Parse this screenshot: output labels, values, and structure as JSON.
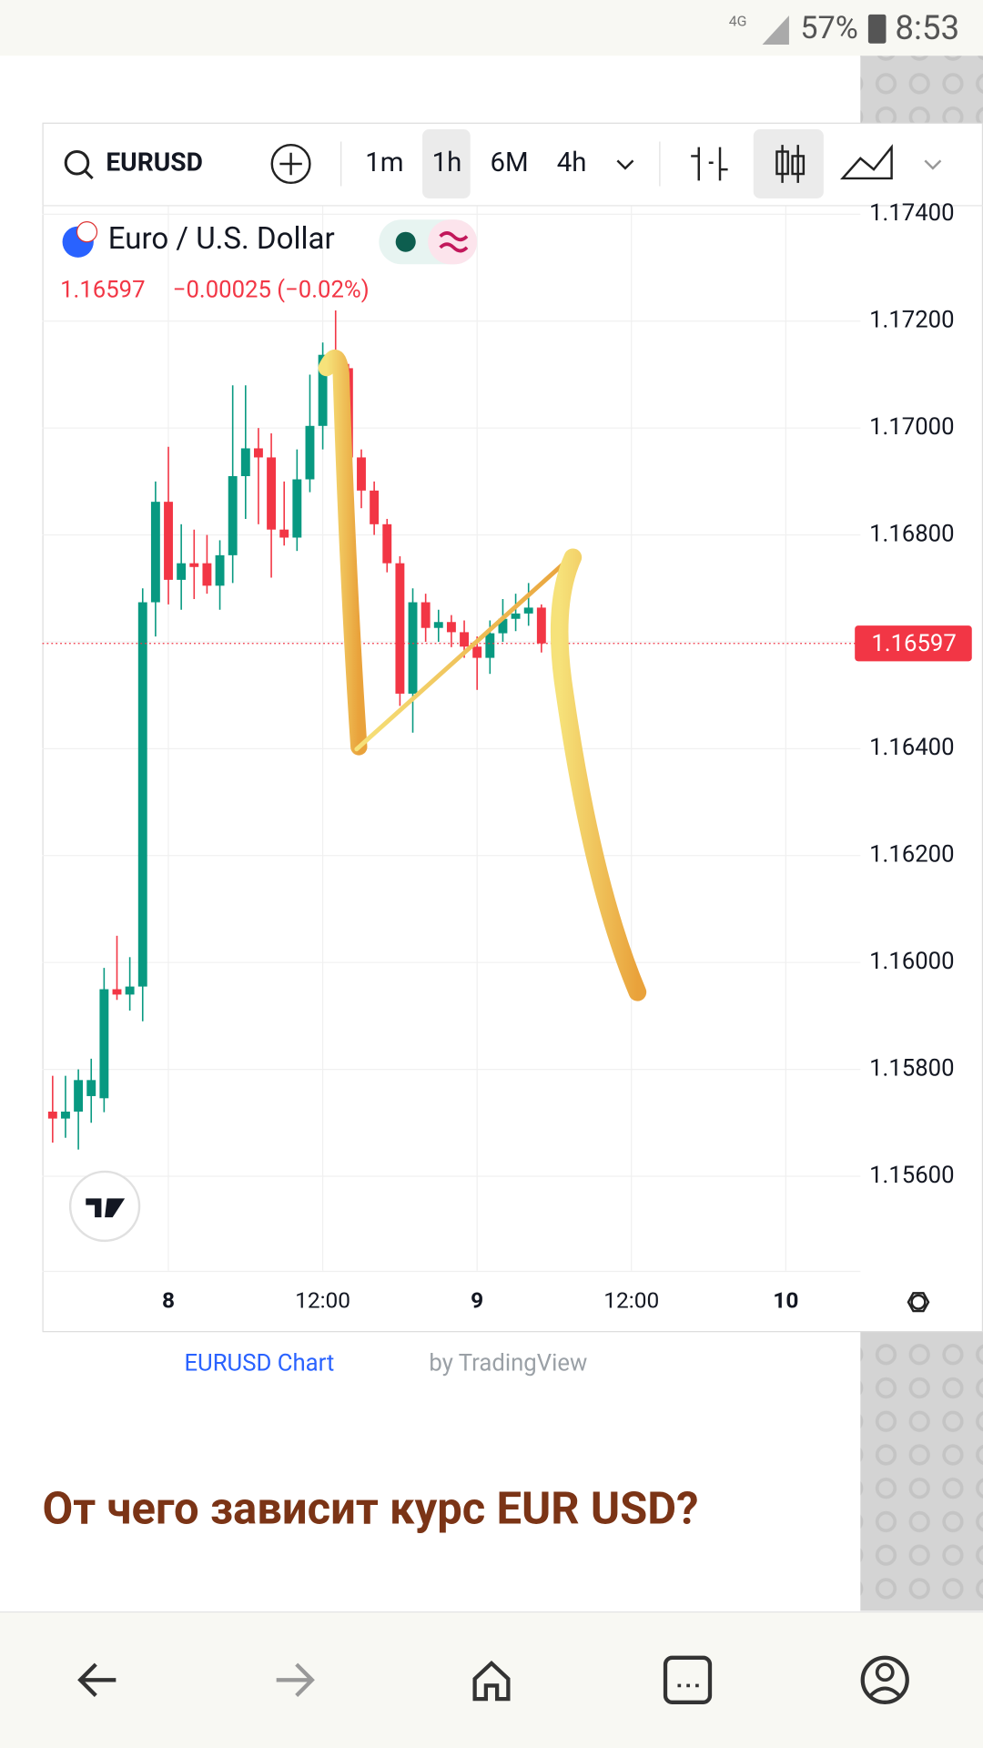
{
  "status_bar": {
    "network": "4G",
    "battery": "57%",
    "time": "8:53"
  },
  "toolbar": {
    "symbol": "EURUSD",
    "intervals": [
      "1m",
      "1h",
      "6M",
      "4h"
    ]
  },
  "chart_data": {
    "type": "candlestick",
    "title": "Euro / U.S. Dollar",
    "last_price": 1.16597,
    "change": "−0.00025 (−0.02%)",
    "x": [
      -9,
      -8,
      -7,
      -6,
      -5,
      -4,
      -3,
      -2,
      -1,
      0,
      1,
      2,
      3,
      4,
      5,
      6,
      7,
      8,
      9,
      10,
      11,
      12,
      13,
      14,
      15,
      16,
      17,
      18,
      19,
      20,
      21,
      22,
      23,
      24,
      25,
      26,
      27,
      28,
      29
    ],
    "open": [
      1.15721,
      1.15708,
      1.15721,
      1.1575,
      1.15746,
      1.1595,
      1.1594,
      1.15955,
      1.16674,
      1.16862,
      1.16716,
      1.16747,
      1.16747,
      1.16705,
      1.16762,
      1.1691,
      1.16962,
      1.16945,
      1.1681,
      1.16795,
      1.16904,
      1.17004,
      1.17137,
      1.17112,
      1.16945,
      1.16883,
      1.1682,
      1.16747,
      1.16503,
      1.16674,
      1.16626,
      1.16637,
      1.16618,
      1.16591,
      1.1657,
      1.16616,
      1.16643,
      1.16653,
      1.16664
    ],
    "high": [
      1.15788,
      1.15788,
      1.158,
      1.1582,
      1.1599,
      1.1605,
      1.1601,
      1.167,
      1.169,
      1.16965,
      1.1682,
      1.1681,
      1.168,
      1.1679,
      1.1708,
      1.1708,
      1.17,
      1.1699,
      1.169,
      1.1696,
      1.171,
      1.1716,
      1.1722,
      1.1712,
      1.1696,
      1.169,
      1.1683,
      1.1676,
      1.167,
      1.1669,
      1.1666,
      1.1665,
      1.1664,
      1.1661,
      1.1664,
      1.1668,
      1.1669,
      1.1671,
      1.1667
    ],
    "low": [
      1.15663,
      1.15672,
      1.1565,
      1.157,
      1.1572,
      1.1593,
      1.1591,
      1.1589,
      1.1661,
      1.1667,
      1.1666,
      1.1668,
      1.1669,
      1.1666,
      1.1671,
      1.1683,
      1.1682,
      1.1672,
      1.1678,
      1.1677,
      1.1688,
      1.1696,
      1.1705,
      1.1694,
      1.1685,
      1.168,
      1.1673,
      1.1648,
      1.1643,
      1.166,
      1.166,
      1.1659,
      1.1657,
      1.1651,
      1.1654,
      1.166,
      1.1662,
      1.1663,
      1.1658
    ],
    "close": [
      1.15708,
      1.15721,
      1.1578,
      1.1578,
      1.1595,
      1.1594,
      1.15955,
      1.16674,
      1.16862,
      1.16716,
      1.16747,
      1.1674,
      1.16705,
      1.16762,
      1.1691,
      1.16962,
      1.16945,
      1.1681,
      1.16795,
      1.16904,
      1.17004,
      1.17137,
      1.17112,
      1.16945,
      1.16883,
      1.1682,
      1.16747,
      1.16503,
      1.16674,
      1.16626,
      1.16637,
      1.16618,
      1.16591,
      1.1657,
      1.16616,
      1.16643,
      1.16653,
      1.16664,
      1.16597
    ],
    "up_color": "#089981",
    "down_color": "#f23645",
    "xlim": [
      -9.8,
      53.8
    ],
    "xticks": [
      {
        "value": 0,
        "label": "8"
      },
      {
        "value": 12,
        "label": "12:00"
      },
      {
        "value": 24,
        "label": "9"
      },
      {
        "value": 36,
        "label": "12:00"
      },
      {
        "value": 48,
        "label": "10"
      }
    ],
    "ylim": [
      1.15423,
      1.17415
    ],
    "yticks": [
      {
        "value": 1.156,
        "label": "1.15600"
      },
      {
        "value": 1.158,
        "label": "1.15800"
      },
      {
        "value": 1.16,
        "label": "1.16000"
      },
      {
        "value": 1.162,
        "label": "1.16200"
      },
      {
        "value": 1.164,
        "label": "1.16400"
      },
      {
        "value": 1.166,
        "label": "1.16600"
      },
      {
        "value": 1.168,
        "label": "1.16800"
      },
      {
        "value": 1.17,
        "label": "1.17000"
      },
      {
        "value": 1.172,
        "label": "1.17200"
      },
      {
        "value": 1.174,
        "label": "1.17400"
      }
    ],
    "grid": true
  },
  "caption": {
    "link": "EURUSD Chart",
    "suffix": "by TradingView"
  },
  "heading": "От чего зависит курс EUR USD?"
}
